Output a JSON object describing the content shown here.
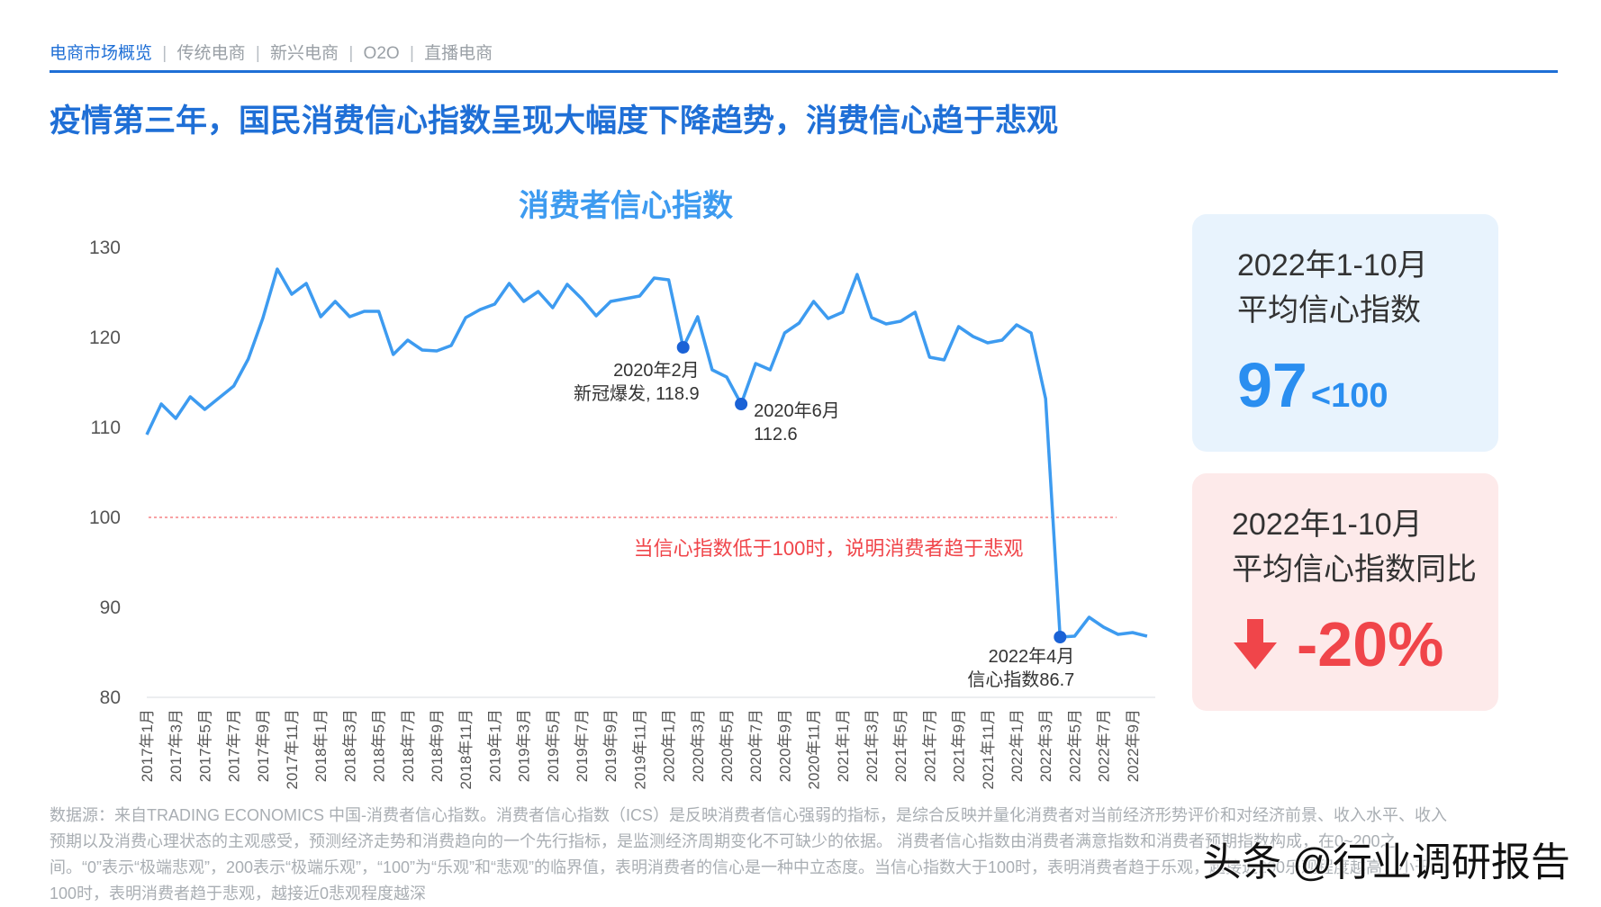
{
  "header": {
    "nav_active": "电商市场概览",
    "nav_items": [
      "传统电商",
      "新兴电商",
      "O2O",
      "直播电商"
    ],
    "headline": "疫情第三年，国民消费信心指数呈现大幅度下降趋势，消费信心趋于悲观"
  },
  "colors": {
    "accent": "#1f6fd6",
    "line": "#3d9bf0",
    "threshold": "#f0454a",
    "negative": "#f0454a"
  },
  "chart_data": {
    "type": "line",
    "title": "消费者信心指数",
    "xlabel": "",
    "ylabel": "",
    "ylim": [
      80,
      130
    ],
    "yticks": [
      80,
      90,
      100,
      110,
      120,
      130
    ],
    "x_tick_labels": [
      "2017年1月",
      "2017年3月",
      "2017年5月",
      "2017年7月",
      "2017年9月",
      "2017年11月",
      "2018年1月",
      "2018年3月",
      "2018年5月",
      "2018年7月",
      "2018年9月",
      "2018年11月",
      "2019年1月",
      "2019年3月",
      "2019年5月",
      "2019年7月",
      "2019年9月",
      "2019年11月",
      "2020年1月",
      "2020年3月",
      "2020年5月",
      "2020年7月",
      "2020年9月",
      "2020年11月",
      "2021年1月",
      "2021年3月",
      "2021年5月",
      "2021年7月",
      "2021年9月",
      "2021年11月",
      "2022年1月",
      "2022年3月",
      "2022年5月",
      "2022年7月",
      "2022年9月"
    ],
    "series": [
      {
        "name": "消费者信心指数",
        "values": [
          109.2,
          112.6,
          111.0,
          113.4,
          112.0,
          113.3,
          114.6,
          117.6,
          122.1,
          127.6,
          124.8,
          126.0,
          122.3,
          124.0,
          122.3,
          122.9,
          122.9,
          118.1,
          119.7,
          118.6,
          118.5,
          119.1,
          122.2,
          123.1,
          123.7,
          126.0,
          124.0,
          125.1,
          123.3,
          125.9,
          124.3,
          122.4,
          124.0,
          124.3,
          124.6,
          126.6,
          126.4,
          118.9,
          122.3,
          116.4,
          115.6,
          112.6,
          117.1,
          116.4,
          120.5,
          121.6,
          124.0,
          122.1,
          122.8,
          127.0,
          122.2,
          121.5,
          121.8,
          122.8,
          117.8,
          117.5,
          121.2,
          120.1,
          119.4,
          119.7,
          121.4,
          120.5,
          113.2,
          86.7,
          86.8,
          88.9,
          87.8,
          87.0,
          87.2,
          86.8
        ]
      }
    ],
    "threshold": {
      "value": 100,
      "label": "当信心指数低于100时，说明消费者趋于悲观"
    },
    "annotations": [
      {
        "index": 37,
        "value": 118.9,
        "line1": "2020年2月",
        "line2": "新冠爆发, 118.9"
      },
      {
        "index": 41,
        "value": 112.6,
        "line1": "2020年6月",
        "line2": "112.6"
      },
      {
        "index": 63,
        "value": 86.7,
        "line1": "2022年4月",
        "line2": "信心指数86.7"
      }
    ]
  },
  "cards": {
    "average": {
      "line1": "2022年1-10月",
      "line2": "平均信心指数",
      "value": "97",
      "comparison": "<100"
    },
    "yoy": {
      "line1": "2022年1-10月",
      "line2": "平均信心指数同比",
      "value": "-20%"
    }
  },
  "footnote": "数据源：来自TRADING ECONOMICS 中国-消费者信心指数。消费者信心指数（ICS）是反映消费者信心强弱的指标，是综合反映并量化消费者对当前经济形势评价和对经济前景、收入水平、收入预期以及消费心理状态的主观感受，预测经济走势和消费趋向的一个先行指标，是监测经济周期变化不可缺少的依据。 消费者信心指数由消费者满意指数和消费者预期指数构成，在0~200之间。“0”表示“极端悲观”，200表示“极端乐观”，“100”为“乐观”和“悲观”的临界值，表明消费者的信心是一种中立态度。当信心指数大于100时，表明消费者趋于乐观，越接近200乐观程度越高；小于100时，表明消费者趋于悲观，越接近0悲观程度越深",
  "watermark": "头条 @行业调研报告"
}
